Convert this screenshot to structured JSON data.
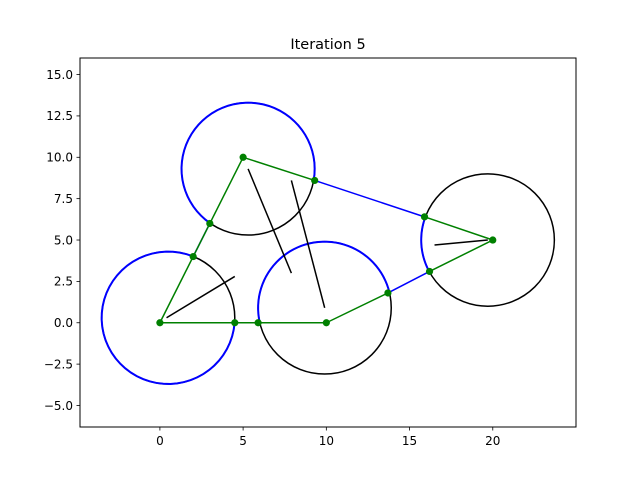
{
  "chart_data": {
    "type": "line",
    "title": "Iteration 5",
    "xlabel": "",
    "ylabel": "",
    "xlim": [
      -4.8,
      25.0
    ],
    "ylim": [
      -6.3,
      16.0
    ],
    "grid": false,
    "xticks": [
      0,
      5,
      10,
      15,
      20
    ],
    "xtick_labels": [
      "0",
      "5",
      "10",
      "15",
      "20"
    ],
    "yticks": [
      -5.0,
      -2.5,
      0.0,
      2.5,
      5.0,
      7.5,
      10.0,
      12.5,
      15.0
    ],
    "ytick_labels": [
      "−5.0",
      "−2.5",
      "0.0",
      "2.5",
      "5.0",
      "7.5",
      "10.0",
      "12.5",
      "15.0"
    ],
    "colors": {
      "circle": "#000000",
      "arc": "#0000ff",
      "polygon": "#008000",
      "vertex": "#008000",
      "segment": "#000000"
    },
    "circles": [
      {
        "cx": 0.5,
        "cy": 0.3,
        "r": 4.0,
        "arc_from": [
          4.5,
          0.0
        ],
        "arc_to": [
          2.0,
          4.0
        ]
      },
      {
        "cx": 5.3,
        "cy": 9.3,
        "r": 4.0,
        "arc_from": [
          3.0,
          6.0
        ],
        "arc_to": [
          9.3,
          8.6
        ]
      },
      {
        "cx": 9.9,
        "cy": 0.9,
        "r": 4.0,
        "arc_from": [
          5.9,
          0.0
        ],
        "arc_to": [
          13.7,
          1.8
        ]
      },
      {
        "cx": 19.7,
        "cy": 5.0,
        "r": 4.0,
        "arc_from": [
          16.2,
          3.1
        ],
        "arc_to": [
          15.9,
          6.4
        ]
      }
    ],
    "blue_lines": [
      {
        "from": [
          2.0,
          4.0
        ],
        "to": [
          3.0,
          6.0
        ]
      },
      {
        "from": [
          9.3,
          8.6
        ],
        "to": [
          15.9,
          6.4
        ]
      },
      {
        "from": [
          13.7,
          1.8
        ],
        "to": [
          16.2,
          3.1
        ]
      }
    ],
    "green_edges": [
      [
        [
          0,
          0
        ],
        [
          5,
          10
        ]
      ],
      [
        [
          5,
          10
        ],
        [
          9.3,
          8.6
        ]
      ],
      [
        [
          0,
          0
        ],
        [
          10,
          0
        ]
      ],
      [
        [
          10,
          0
        ],
        [
          13.7,
          1.8
        ]
      ],
      [
        [
          20,
          5
        ],
        [
          15.9,
          6.4
        ]
      ],
      [
        [
          20,
          5
        ],
        [
          16.2,
          3.1
        ]
      ]
    ],
    "vertices": [
      [
        0,
        0
      ],
      [
        4.5,
        0
      ],
      [
        5.9,
        0
      ],
      [
        10,
        0
      ],
      [
        2.0,
        4.0
      ],
      [
        3.0,
        6.0
      ],
      [
        5.0,
        10.0
      ],
      [
        9.3,
        8.6
      ],
      [
        13.7,
        1.8
      ],
      [
        15.9,
        6.4
      ],
      [
        16.2,
        3.1
      ],
      [
        20.0,
        5.0
      ]
    ],
    "black_segments": [
      [
        [
          0.4,
          0.3
        ],
        [
          4.5,
          2.8
        ]
      ],
      [
        [
          5.3,
          9.3
        ],
        [
          7.9,
          3.0
        ]
      ],
      [
        [
          7.9,
          8.6
        ],
        [
          9.9,
          0.9
        ]
      ],
      [
        [
          16.5,
          4.7
        ],
        [
          19.7,
          5.0
        ]
      ]
    ]
  }
}
